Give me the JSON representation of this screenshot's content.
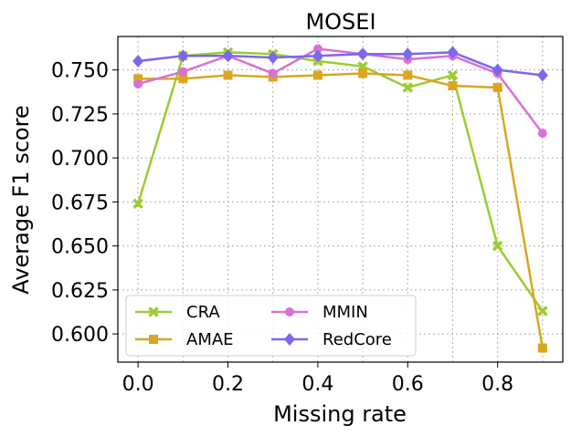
{
  "chart_data": {
    "type": "line",
    "title": "MOSEI",
    "xlabel": "Missing rate",
    "ylabel": "Average F1 score",
    "x": [
      0.0,
      0.1,
      0.2,
      0.3,
      0.4,
      0.5,
      0.6,
      0.7,
      0.8,
      0.9
    ],
    "xlim": [
      -0.045,
      0.945
    ],
    "ylim": [
      0.584,
      0.769
    ],
    "xticks": [
      0.0,
      0.2,
      0.4,
      0.6,
      0.8
    ],
    "xtick_labels": [
      "0.0",
      "0.2",
      "0.4",
      "0.6",
      "0.8"
    ],
    "yticks": [
      0.6,
      0.625,
      0.65,
      0.675,
      0.7,
      0.725,
      0.75
    ],
    "ytick_labels": [
      "0.600",
      "0.625",
      "0.650",
      "0.675",
      "0.700",
      "0.725",
      "0.750"
    ],
    "grid": true,
    "legend": {
      "location": "lower-left",
      "columns": 2
    },
    "series": [
      {
        "name": "CRA",
        "color": "#9acd32",
        "marker": "x",
        "values": [
          0.674,
          0.758,
          0.76,
          0.759,
          0.755,
          0.752,
          0.74,
          0.747,
          0.65,
          0.613
        ]
      },
      {
        "name": "AMAE",
        "color": "#daa520",
        "marker": "square",
        "values": [
          0.745,
          0.745,
          0.747,
          0.746,
          0.747,
          0.748,
          0.747,
          0.741,
          0.74,
          0.592
        ]
      },
      {
        "name": "MMIN",
        "color": "#da70d6",
        "marker": "circle",
        "values": [
          0.742,
          0.749,
          0.758,
          0.748,
          0.762,
          0.759,
          0.756,
          0.758,
          0.748,
          0.714
        ]
      },
      {
        "name": "RedCore",
        "color": "#7b68ee",
        "marker": "diamond",
        "values": [
          0.755,
          0.758,
          0.758,
          0.757,
          0.758,
          0.759,
          0.759,
          0.76,
          0.75,
          0.747
        ]
      }
    ]
  }
}
